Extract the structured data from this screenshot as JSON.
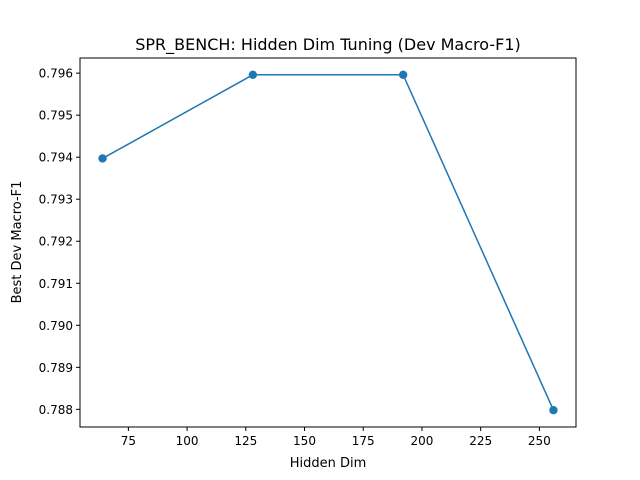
{
  "chart_data": {
    "type": "line",
    "title": "SPR_BENCH: Hidden Dim Tuning (Dev Macro-F1)",
    "xlabel": "Hidden Dim",
    "ylabel": "Best Dev Macro-F1",
    "x": [
      64,
      128,
      192,
      256
    ],
    "series": [
      {
        "values": [
          0.79397,
          0.79596,
          0.79596,
          0.78798
        ]
      }
    ],
    "xlim": [
      54.4,
      265.6
    ],
    "ylim": [
      0.78758,
      0.79636
    ],
    "x_ticks": [
      75,
      100,
      125,
      150,
      175,
      200,
      225,
      250
    ],
    "y_ticks": [
      0.788,
      0.789,
      0.79,
      0.791,
      0.792,
      0.793,
      0.794,
      0.795,
      0.796
    ],
    "x_tick_labels": [
      "75",
      "100",
      "125",
      "150",
      "175",
      "200",
      "225",
      "250"
    ],
    "y_tick_labels": [
      "0.788",
      "0.789",
      "0.790",
      "0.791",
      "0.792",
      "0.793",
      "0.794",
      "0.795",
      "0.796"
    ],
    "line_color": "#1f77b4",
    "marker": "circle",
    "grid": false,
    "legend": "none"
  }
}
